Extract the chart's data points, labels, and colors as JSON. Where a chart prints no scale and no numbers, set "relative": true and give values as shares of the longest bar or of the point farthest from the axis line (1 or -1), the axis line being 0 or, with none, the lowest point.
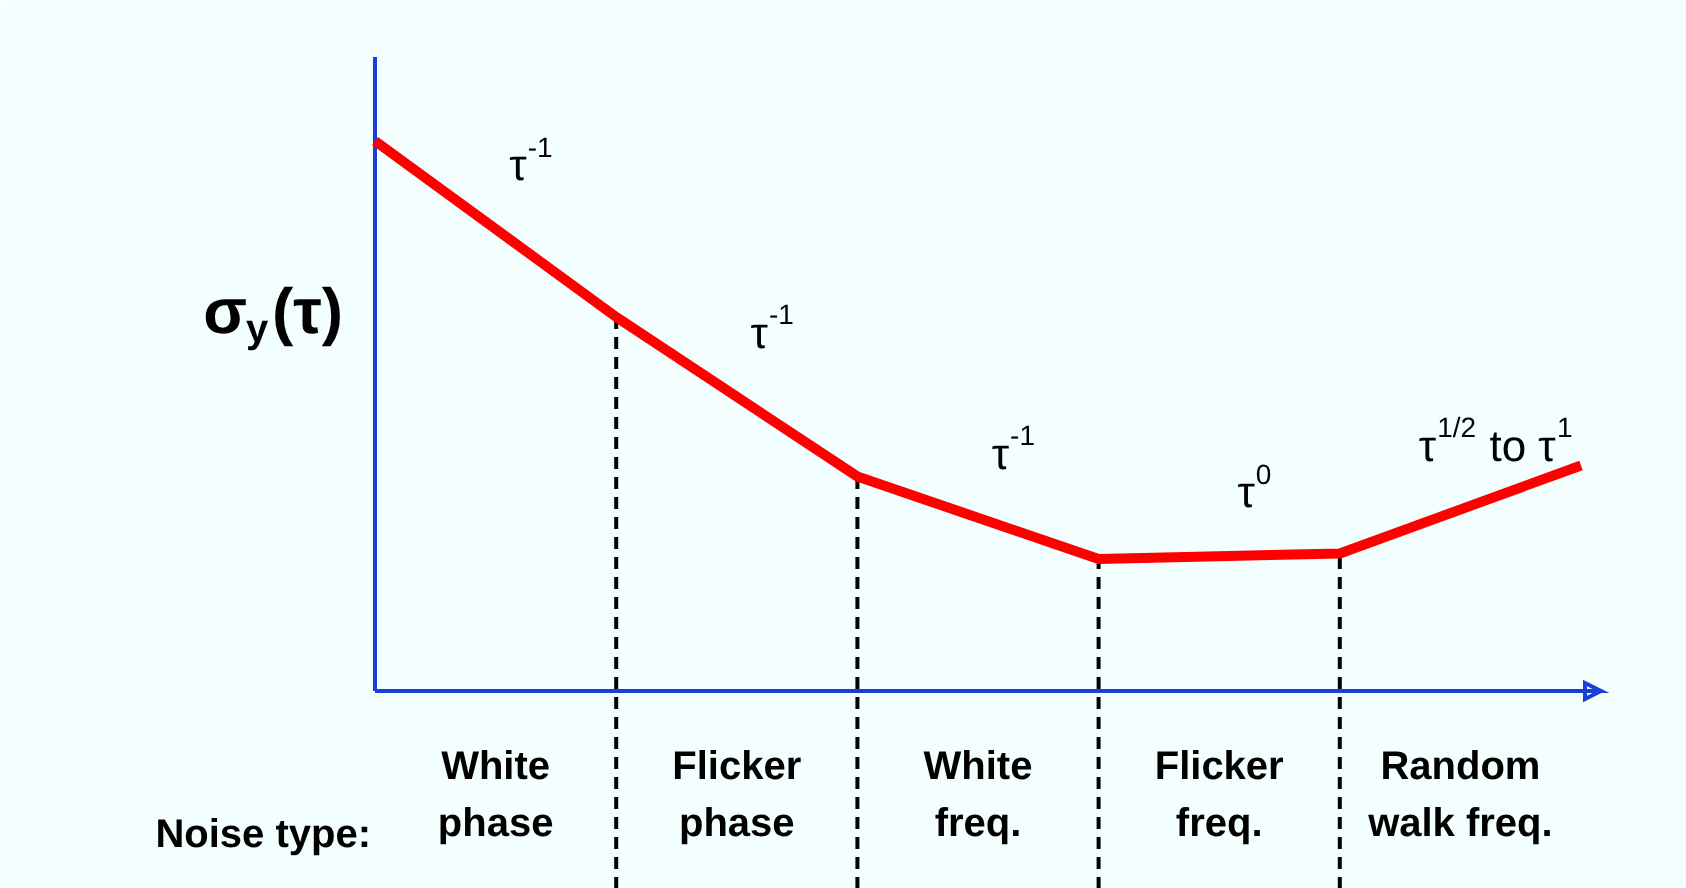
{
  "chart_data": {
    "type": "line",
    "relative": true,
    "tick_labels": false,
    "categories": [
      null,
      null,
      null,
      null,
      null,
      null
    ],
    "series": [
      {
        "color": "#ff0000",
        "values": [
          1,
          0.68,
          0.39,
          0.24,
          0.25,
          0.41
        ]
      }
    ],
    "ylabel": "σ$_{y}$(τ)",
    "annotations": [
      "τ$^{-1}$",
      "τ$^{-1}$",
      "τ$^{-1}$",
      "τ$^{0}$",
      "τ$^{1/2}$ to τ$^{1}$",
      "Noise type:",
      "White\nphase",
      "Flicker\nphase",
      "White\nfreq.",
      "Flicker\nfreq.",
      "Random\nwalk freq."
    ]
  }
}
